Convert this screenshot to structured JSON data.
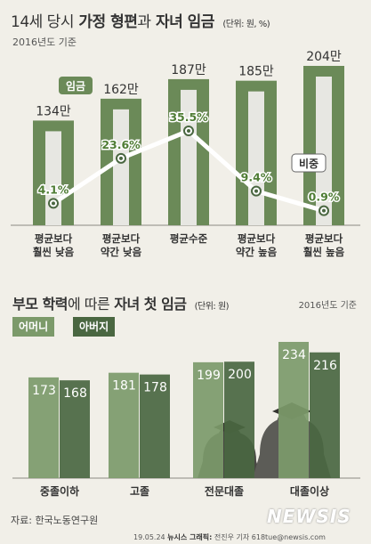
{
  "top": {
    "title_prefix": "14세 당시",
    "title_bold1": "가정 형편",
    "title_mid": "과",
    "title_bold2": "자녀 임금",
    "unit": "(단위: 원, %)",
    "subtitle": "2016년도 기준",
    "tag_wage": "임금",
    "tag_ratio": "비중"
  },
  "bottom": {
    "title_bold1": "부모 학력",
    "title_mid": "에 따른",
    "title_bold2": "자녀 첫 임금",
    "unit": "(단위: 원)",
    "year_note": "2016년도 기준"
  },
  "legend": {
    "mother": "어머니",
    "father": "아버지"
  },
  "colors": {
    "mother": "#7c9a6a",
    "father": "#4a6741",
    "bar_top": "#6b8a58",
    "bar_stripe": "#e7e7e2",
    "line": "#ffffff",
    "dot": "#4a6741",
    "pct": "#4f7d35"
  },
  "chart_data": [
    {
      "type": "bar",
      "categories": [
        "평균보다 훨씬 낮음",
        "평균보다 약간 낮음",
        "평균수준",
        "평균보다 약간 높음",
        "평균보다 훨씬 높음"
      ],
      "category_lines": [
        [
          "평균보다",
          "훨씬 낮음"
        ],
        [
          "평균보다",
          "약간 낮음"
        ],
        [
          "평균수준"
        ],
        [
          "평균보다",
          "약간 높음"
        ],
        [
          "평균보다",
          "훨씬 높음"
        ]
      ],
      "series": [
        {
          "name": "임금",
          "values": [
            134,
            162,
            187,
            185,
            204
          ],
          "labels": [
            "134만",
            "162만",
            "187만",
            "185만",
            "204만"
          ]
        },
        {
          "name": "비중",
          "values": [
            4.1,
            23.6,
            35.5,
            9.4,
            0.9
          ],
          "labels": [
            "4.1%",
            "23.6%",
            "35.5%",
            "9.4%",
            "0.9%"
          ],
          "render": "line"
        }
      ]
    },
    {
      "type": "bar",
      "categories": [
        "중졸이하",
        "고졸",
        "전문대졸",
        "대졸이상"
      ],
      "series": [
        {
          "name": "어머니",
          "values": [
            173,
            181,
            199,
            234
          ]
        },
        {
          "name": "아버지",
          "values": [
            168,
            178,
            200,
            216
          ]
        }
      ]
    }
  ],
  "source": "자료: 한국노동연구원",
  "footer": {
    "date": "19.05.24",
    "agency": "뉴시스 그래픽:",
    "credit": "전진우 기자 618tue@newsis.com"
  },
  "brand": "NEWSIS"
}
